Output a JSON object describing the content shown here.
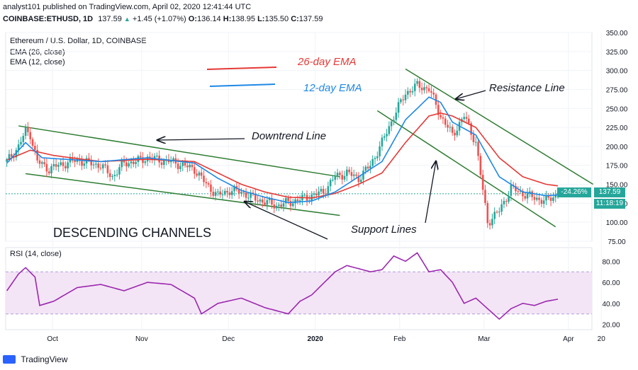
{
  "header": {
    "publisher_line": "analyst101 published on TradingView.com, April 02, 2020 12:41:44 UTC",
    "ticker": "COINBASE:ETHUSD, 1D",
    "last": "137.59",
    "change": "+1.45 (+1.07%)",
    "o_label": "O:",
    "o": "136.14",
    "h_label": "H:",
    "h": "138.95",
    "l_label": "L:",
    "l": "135.50",
    "c_label": "C:",
    "c": "137.59"
  },
  "legend": {
    "title": "Ethereum / U.S. Dollar, 1D, COINBASE",
    "ema26": "EMA (26, close)",
    "ema12": "EMA (12, close)",
    "rsi": "RSI (14, close)"
  },
  "annotations": {
    "ema26_note": "26-day EMA",
    "ema12_note": "12-day EMA",
    "downtrend": "Downtrend Line",
    "resistance": "Resistance Line",
    "support": "Support Lines",
    "channels": "DESCENDING CHANNELS"
  },
  "price_badges": {
    "change_pct": "-24.26%",
    "last": "137.59",
    "countdown": "11:18:19"
  },
  "footer": {
    "brand": "TradingView"
  },
  "colors": {
    "up": "#26a69a",
    "down": "#ef5350",
    "ema26": "#e53935",
    "ema12": "#1e88e5",
    "trendline": "#2e7d32",
    "rsi_line": "#9c27b0",
    "rsi_band": "#f3e5f5",
    "note_red": "#e53935",
    "note_blue": "#1e88e5",
    "badge": "#26a69a"
  },
  "chart_data": [
    {
      "type": "candlestick",
      "title": "Ethereum / U.S. Dollar, 1D, COINBASE",
      "x_ticks": [
        "Oct",
        "Nov",
        "Dec",
        "2020",
        "Feb",
        "Mar",
        "Apr",
        "20"
      ],
      "y_ticks": [
        "350.00",
        "325.00",
        "300.00",
        "275.00",
        "250.00",
        "225.00",
        "200.00",
        "175.00",
        "150.00",
        "125.00",
        "100.00",
        "75.00"
      ],
      "ylim": [
        75,
        350
      ],
      "close_series": {
        "name": "ETHUSD close (approx.)",
        "anchors_x": [
          0,
          5,
          8,
          10,
          13,
          18,
          22,
          30,
          35,
          40,
          45,
          50,
          55,
          60,
          65,
          70,
          75,
          80,
          85,
          90,
          95,
          100,
          105,
          110,
          115,
          120,
          125,
          130,
          135,
          140,
          145,
          150,
          155,
          160,
          165,
          170,
          175,
          180,
          185,
          190,
          195,
          200,
          205,
          210,
          215,
          220,
          225,
          230,
          235
        ],
        "anchors_y": [
          180,
          200,
          220,
          216,
          180,
          170,
          175,
          182,
          178,
          175,
          160,
          178,
          180,
          185,
          182,
          180,
          175,
          170,
          150,
          135,
          142,
          140,
          132,
          127,
          122,
          126,
          130,
          135,
          140,
          160,
          165,
          158,
          175,
          205,
          240,
          270,
          280,
          276,
          240,
          215,
          240,
          205,
          100,
          115,
          145,
          138,
          132,
          128,
          137.59
        ]
      },
      "ema26": {
        "name": "EMA (26, close)",
        "anchors_x": [
          0,
          10,
          20,
          40,
          60,
          80,
          90,
          100,
          110,
          120,
          130,
          140,
          150,
          160,
          170,
          180,
          185,
          190,
          200,
          210,
          220,
          230,
          235
        ],
        "anchors_y": [
          182,
          195,
          188,
          180,
          183,
          180,
          165,
          150,
          140,
          133,
          132,
          138,
          150,
          165,
          205,
          240,
          244,
          240,
          225,
          185,
          160,
          150,
          148
        ]
      },
      "ema12": {
        "name": "EMA (12, close)",
        "anchors_x": [
          0,
          8,
          15,
          40,
          60,
          80,
          90,
          100,
          110,
          120,
          130,
          140,
          150,
          160,
          170,
          180,
          185,
          190,
          200,
          210,
          220,
          230,
          235
        ],
        "anchors_y": [
          178,
          205,
          185,
          180,
          185,
          178,
          158,
          142,
          133,
          126,
          128,
          140,
          160,
          180,
          235,
          265,
          258,
          232,
          215,
          160,
          140,
          135,
          136
        ]
      },
      "trendlines": [
        {
          "name": "Downtrend Line",
          "p1": [
            5,
            227
          ],
          "p2": [
            142,
            160
          ]
        },
        {
          "name": "Lower channel",
          "p1": [
            8,
            164
          ],
          "p2": [
            142,
            109
          ]
        },
        {
          "name": "Resistance Line",
          "p1": [
            170,
            302
          ],
          "p2": [
            250,
            150
          ]
        },
        {
          "name": "Support Lines",
          "p1": [
            158,
            247
          ],
          "p2": [
            234,
            94
          ]
        }
      ],
      "last_price": 137.59,
      "change_pct": "-24.26%"
    },
    {
      "type": "line",
      "title": "RSI (14, close)",
      "y_ticks": [
        "80.00",
        "60.00",
        "40.00",
        "20.00"
      ],
      "ylim": [
        15,
        93
      ],
      "bands": [
        30,
        70
      ],
      "series": [
        {
          "name": "RSI (14, close)",
          "anchors_x": [
            0,
            5,
            8,
            12,
            14,
            20,
            30,
            40,
            50,
            60,
            70,
            80,
            83,
            90,
            100,
            110,
            120,
            125,
            130,
            140,
            145,
            155,
            160,
            165,
            170,
            175,
            180,
            185,
            190,
            195,
            200,
            205,
            210,
            215,
            220,
            225,
            230,
            235
          ],
          "anchors_y": [
            52,
            68,
            74,
            65,
            38,
            42,
            55,
            58,
            52,
            60,
            58,
            45,
            30,
            40,
            45,
            36,
            30,
            42,
            48,
            70,
            76,
            70,
            72,
            85,
            80,
            88,
            70,
            72,
            60,
            40,
            45,
            35,
            25,
            35,
            40,
            38,
            42,
            44
          ]
        }
      ]
    }
  ]
}
